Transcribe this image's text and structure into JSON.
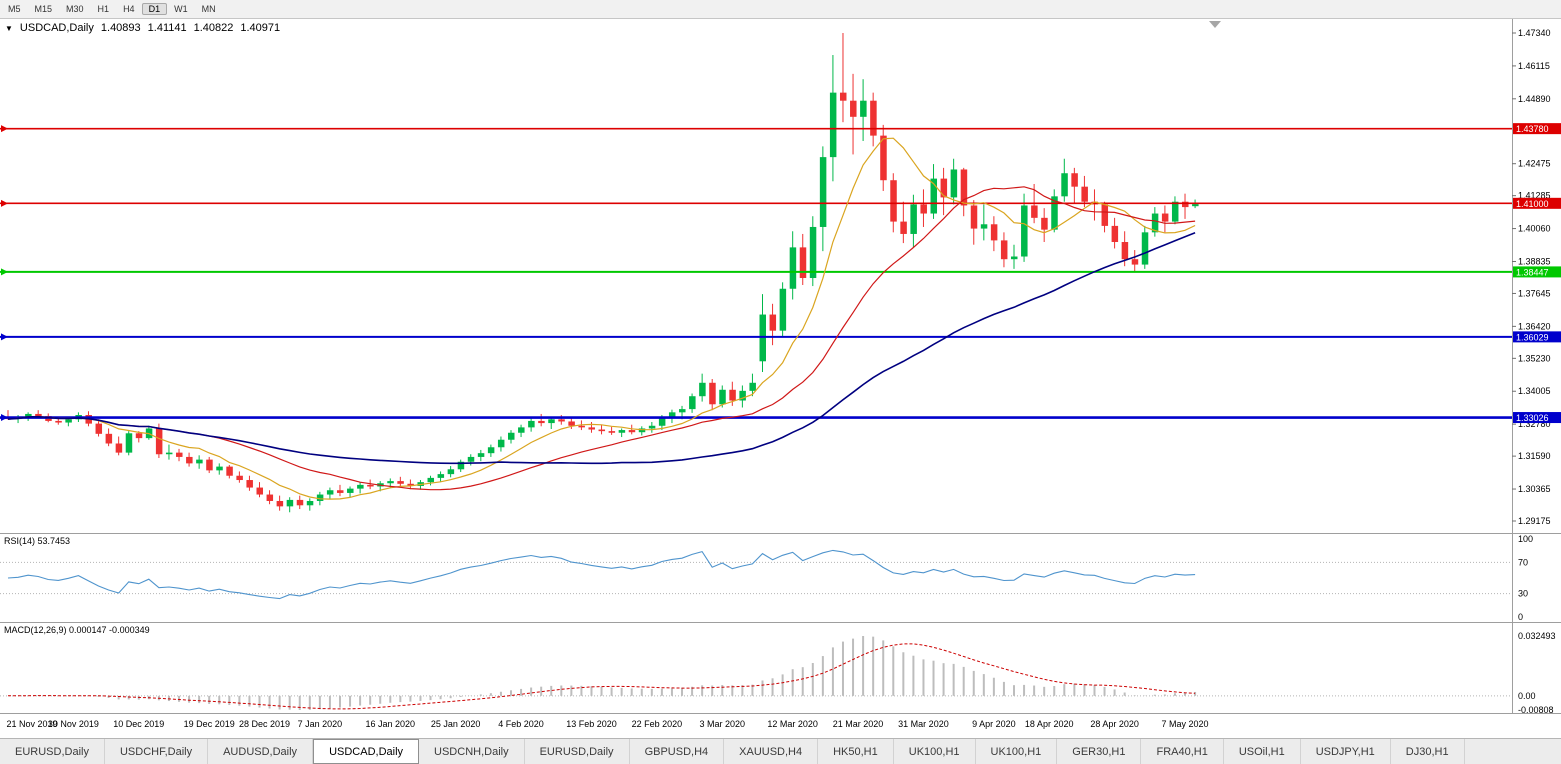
{
  "toolbar": {
    "timeframes": [
      "M5",
      "M15",
      "M30",
      "H1",
      "H4",
      "D1",
      "W1",
      "MN"
    ],
    "active": "D1"
  },
  "chart_header": {
    "dropdown_glyph": "▼",
    "symbol": "USDCAD,Daily",
    "open": "1.40893",
    "high": "1.41141",
    "low": "1.40822",
    "close": "1.40971"
  },
  "indicator_panels": {
    "rsi": {
      "label": "RSI(14) 53.7453",
      "axis_labels": [
        "100",
        "70",
        "30",
        "0"
      ],
      "levels": [
        70,
        30
      ]
    },
    "macd": {
      "label": "MACD(12,26,9) 0.000147 -0.000349",
      "axis_labels": [
        "0.032493",
        "0.00",
        "-0.00808"
      ]
    }
  },
  "tabs": {
    "active_index": 3,
    "items": [
      "EURUSD,Daily",
      "USDCHF,Daily",
      "AUDUSD,Daily",
      "USDCAD,Daily",
      "USDCNH,Daily",
      "EURUSD,Daily",
      "GBPUSD,H4",
      "XAUUSD,H4",
      "HK50,H1",
      "UK100,H1",
      "UK100,H1",
      "GER30,H1",
      "FRA40,H1",
      "USOil,H1",
      "USDJPY,H1",
      "DJ30,H1"
    ]
  },
  "colors": {
    "candle_up": "#00b84a",
    "candle_down": "#ee3232",
    "ma_fast": "#DAA520",
    "ma_mid": "#d01818",
    "ma_slow": "#000080",
    "rsi_line": "#4f94cd",
    "macd_hist": "#bdbdbd",
    "macd_signal": "#cc0000"
  },
  "chart_data": {
    "type": "candlestick",
    "title": "USDCAD,Daily",
    "price_ticks": [
      "1.47340",
      "1.46115",
      "1.44890",
      "1.42475",
      "1.41285",
      "1.40060",
      "1.38835",
      "1.37645",
      "1.36420",
      "1.35230",
      "1.34005",
      "1.32780",
      "1.31590",
      "1.30365",
      "1.29175"
    ],
    "hlines": [
      {
        "price": 1.4378,
        "label": "1.43780",
        "color": "#dd0000",
        "width": 1.6
      },
      {
        "price": 1.41,
        "label": "1.41000",
        "color": "#dd0000",
        "width": 1.6
      },
      {
        "price": 1.38447,
        "label": "1.38447",
        "color": "#00c800",
        "width": 2
      },
      {
        "price": 1.36029,
        "label": "1.36029",
        "color": "#0000cc",
        "width": 2
      },
      {
        "price": 1.33026,
        "label": "1.33026",
        "color": "#0000cc",
        "width": 2.6
      }
    ],
    "x_axis_dates": [
      {
        "label": "21 Nov 2019",
        "i": 0
      },
      {
        "label": "30 Nov 2019",
        "i": 6.5
      },
      {
        "label": "10 Dec 2019",
        "i": 13
      },
      {
        "label": "19 Dec 2019",
        "i": 20
      },
      {
        "label": "28 Dec 2019",
        "i": 25.5
      },
      {
        "label": "7 Jan 2020",
        "i": 31
      },
      {
        "label": "16 Jan 2020",
        "i": 38
      },
      {
        "label": "25 Jan 2020",
        "i": 44.5
      },
      {
        "label": "4 Feb 2020",
        "i": 51
      },
      {
        "label": "13 Feb 2020",
        "i": 58
      },
      {
        "label": "22 Feb 2020",
        "i": 64.5
      },
      {
        "label": "3 Mar 2020",
        "i": 71
      },
      {
        "label": "12 Mar 2020",
        "i": 78
      },
      {
        "label": "21 Mar 2020",
        "i": 84.5
      },
      {
        "label": "31 Mar 2020",
        "i": 91
      },
      {
        "label": "9 Apr 2020",
        "i": 98
      },
      {
        "label": "18 Apr 2020",
        "i": 103.5
      },
      {
        "label": "28 Apr 2020",
        "i": 110
      },
      {
        "label": "7 May 2020",
        "i": 117
      }
    ],
    "overlays": [
      {
        "type": "sma",
        "period": 8,
        "color_key": "ma_fast",
        "width": 1.2
      },
      {
        "type": "sma",
        "period": 21,
        "color_key": "ma_mid",
        "width": 1.2
      },
      {
        "type": "sma",
        "period": 50,
        "color_key": "ma_slow",
        "width": 1.6
      }
    ],
    "rsi": {
      "period": 14,
      "value": 53.7453
    },
    "macd": {
      "fast": 12,
      "slow": 26,
      "signal_period": 9,
      "value": 0.000147,
      "signal_value": -0.000349
    },
    "ohlc": [
      [
        1.3305,
        1.333,
        1.3295,
        1.3297
      ],
      [
        1.3297,
        1.3312,
        1.3282,
        1.3302
      ],
      [
        1.3302,
        1.3322,
        1.329,
        1.3316
      ],
      [
        1.3316,
        1.333,
        1.33,
        1.3308
      ],
      [
        1.3308,
        1.3318,
        1.3285,
        1.329
      ],
      [
        1.329,
        1.3306,
        1.3276,
        1.3284
      ],
      [
        1.3284,
        1.33,
        1.327,
        1.3296
      ],
      [
        1.3296,
        1.3322,
        1.3286,
        1.3312
      ],
      [
        1.3312,
        1.3326,
        1.327,
        1.328
      ],
      [
        1.328,
        1.3296,
        1.3232,
        1.3242
      ],
      [
        1.3242,
        1.3262,
        1.3196,
        1.3206
      ],
      [
        1.3206,
        1.3232,
        1.3162,
        1.3172
      ],
      [
        1.3172,
        1.3252,
        1.3162,
        1.3244
      ],
      [
        1.3244,
        1.3252,
        1.321,
        1.3226
      ],
      [
        1.3226,
        1.3272,
        1.322,
        1.3262
      ],
      [
        1.3262,
        1.328,
        1.3152,
        1.3166
      ],
      [
        1.3166,
        1.3202,
        1.3146,
        1.3172
      ],
      [
        1.3172,
        1.3186,
        1.314,
        1.3156
      ],
      [
        1.3156,
        1.3172,
        1.312,
        1.3132
      ],
      [
        1.3132,
        1.3162,
        1.3112,
        1.3146
      ],
      [
        1.3146,
        1.3156,
        1.3096,
        1.3106
      ],
      [
        1.3106,
        1.3132,
        1.309,
        1.312
      ],
      [
        1.312,
        1.3126,
        1.3076,
        1.3086
      ],
      [
        1.3086,
        1.3102,
        1.306,
        1.307
      ],
      [
        1.307,
        1.3086,
        1.303,
        1.3042
      ],
      [
        1.3042,
        1.3062,
        1.3006,
        1.3016
      ],
      [
        1.3016,
        1.3032,
        1.298,
        1.2992
      ],
      [
        1.2992,
        1.3012,
        1.2956,
        1.2972
      ],
      [
        1.2972,
        1.3006,
        1.295,
        1.2996
      ],
      [
        1.2996,
        1.3012,
        1.2962,
        1.2976
      ],
      [
        1.2976,
        1.3002,
        1.2956,
        1.2992
      ],
      [
        1.2992,
        1.3026,
        1.2976,
        1.3016
      ],
      [
        1.3016,
        1.3042,
        1.3,
        1.3032
      ],
      [
        1.3032,
        1.3052,
        1.301,
        1.3022
      ],
      [
        1.3022,
        1.3046,
        1.3006,
        1.3038
      ],
      [
        1.3038,
        1.3062,
        1.302,
        1.3052
      ],
      [
        1.3052,
        1.3072,
        1.3036,
        1.3046
      ],
      [
        1.3046,
        1.3066,
        1.3028,
        1.3058
      ],
      [
        1.3058,
        1.3076,
        1.304,
        1.3066
      ],
      [
        1.3066,
        1.3082,
        1.3046,
        1.3056
      ],
      [
        1.3056,
        1.3072,
        1.3036,
        1.3048
      ],
      [
        1.3048,
        1.307,
        1.3034,
        1.3062
      ],
      [
        1.3062,
        1.3086,
        1.305,
        1.3078
      ],
      [
        1.3078,
        1.3102,
        1.3064,
        1.3092
      ],
      [
        1.3092,
        1.3122,
        1.308,
        1.311
      ],
      [
        1.311,
        1.3146,
        1.31,
        1.3138
      ],
      [
        1.3138,
        1.3166,
        1.3124,
        1.3156
      ],
      [
        1.3156,
        1.3182,
        1.314,
        1.317
      ],
      [
        1.317,
        1.3202,
        1.3156,
        1.3192
      ],
      [
        1.3192,
        1.3232,
        1.3176,
        1.322
      ],
      [
        1.322,
        1.3256,
        1.3206,
        1.3246
      ],
      [
        1.3246,
        1.3276,
        1.323,
        1.3266
      ],
      [
        1.3266,
        1.3302,
        1.325,
        1.329
      ],
      [
        1.329,
        1.3316,
        1.327,
        1.3282
      ],
      [
        1.3282,
        1.3306,
        1.326,
        1.3296
      ],
      [
        1.3296,
        1.3312,
        1.3276,
        1.3288
      ],
      [
        1.3288,
        1.33,
        1.326,
        1.3272
      ],
      [
        1.3272,
        1.3292,
        1.3256,
        1.3266
      ],
      [
        1.3266,
        1.3286,
        1.3246,
        1.3258
      ],
      [
        1.3258,
        1.3276,
        1.324,
        1.3252
      ],
      [
        1.3252,
        1.3268,
        1.3238,
        1.3246
      ],
      [
        1.3246,
        1.3262,
        1.323,
        1.3256
      ],
      [
        1.3256,
        1.3276,
        1.324,
        1.3248
      ],
      [
        1.3248,
        1.327,
        1.3236,
        1.3262
      ],
      [
        1.3262,
        1.3286,
        1.3246,
        1.3272
      ],
      [
        1.3272,
        1.3312,
        1.3256,
        1.3302
      ],
      [
        1.3302,
        1.3332,
        1.3282,
        1.3322
      ],
      [
        1.3322,
        1.3346,
        1.3296,
        1.3334
      ],
      [
        1.3334,
        1.3392,
        1.332,
        1.3382
      ],
      [
        1.3382,
        1.3466,
        1.3362,
        1.3432
      ],
      [
        1.3432,
        1.3446,
        1.333,
        1.3352
      ],
      [
        1.3352,
        1.3422,
        1.334,
        1.3406
      ],
      [
        1.3406,
        1.3436,
        1.3346,
        1.3366
      ],
      [
        1.3366,
        1.3422,
        1.334,
        1.3402
      ],
      [
        1.3402,
        1.3466,
        1.3382,
        1.3432
      ],
      [
        1.3512,
        1.3762,
        1.3472,
        1.3686
      ],
      [
        1.3686,
        1.3726,
        1.3572,
        1.3626
      ],
      [
        1.3626,
        1.3806,
        1.3602,
        1.3782
      ],
      [
        1.3782,
        1.3996,
        1.3742,
        1.3936
      ],
      [
        1.3936,
        1.3986,
        1.3796,
        1.3822
      ],
      [
        1.3822,
        1.4052,
        1.3792,
        1.4012
      ],
      [
        1.4012,
        1.4312,
        1.3922,
        1.4272
      ],
      [
        1.4272,
        1.4652,
        1.4182,
        1.4512
      ],
      [
        1.4512,
        1.4734,
        1.4402,
        1.4482
      ],
      [
        1.4482,
        1.4582,
        1.4282,
        1.4422
      ],
      [
        1.4422,
        1.4562,
        1.4332,
        1.4482
      ],
      [
        1.4482,
        1.4512,
        1.4312,
        1.4352
      ],
      [
        1.4352,
        1.4392,
        1.4146,
        1.4186
      ],
      [
        1.4186,
        1.4212,
        1.3992,
        1.4032
      ],
      [
        1.4032,
        1.4106,
        1.3952,
        1.3986
      ],
      [
        1.3986,
        1.4132,
        1.3936,
        1.4096
      ],
      [
        1.4096,
        1.4152,
        1.4012,
        1.4062
      ],
      [
        1.4062,
        1.4246,
        1.4042,
        1.4192
      ],
      [
        1.4192,
        1.4232,
        1.4056,
        1.4122
      ],
      [
        1.4122,
        1.4266,
        1.4096,
        1.4226
      ],
      [
        1.4226,
        1.4232,
        1.4052,
        1.4092
      ],
      [
        1.4092,
        1.4112,
        1.3946,
        1.4006
      ],
      [
        1.4006,
        1.4096,
        1.3962,
        1.4022
      ],
      [
        1.4022,
        1.4052,
        1.3922,
        1.3962
      ],
      [
        1.3962,
        1.3992,
        1.3862,
        1.3892
      ],
      [
        1.3892,
        1.3946,
        1.3856,
        1.3902
      ],
      [
        1.3902,
        1.4136,
        1.3882,
        1.4092
      ],
      [
        1.4092,
        1.4172,
        1.4026,
        1.4046
      ],
      [
        1.4046,
        1.4082,
        1.3956,
        1.4002
      ],
      [
        1.4002,
        1.4152,
        1.3992,
        1.4126
      ],
      [
        1.4126,
        1.4266,
        1.4106,
        1.4212
      ],
      [
        1.4212,
        1.4232,
        1.4102,
        1.4162
      ],
      [
        1.4162,
        1.4202,
        1.4086,
        1.4106
      ],
      [
        1.4106,
        1.4152,
        1.4036,
        1.4096
      ],
      [
        1.4096,
        1.4106,
        1.3992,
        1.4016
      ],
      [
        1.4016,
        1.4046,
        1.3932,
        1.3956
      ],
      [
        1.3956,
        1.3996,
        1.3866,
        1.3892
      ],
      [
        1.3892,
        1.3926,
        1.3846,
        1.3872
      ],
      [
        1.3872,
        1.4016,
        1.3856,
        1.3992
      ],
      [
        1.3992,
        1.4086,
        1.3976,
        1.4062
      ],
      [
        1.4062,
        1.4092,
        1.3992,
        1.4032
      ],
      [
        1.4032,
        1.4126,
        1.4022,
        1.4106
      ],
      [
        1.4106,
        1.4136,
        1.4042,
        1.4086
      ],
      [
        1.40893,
        1.41141,
        1.40822,
        1.40971
      ]
    ]
  }
}
